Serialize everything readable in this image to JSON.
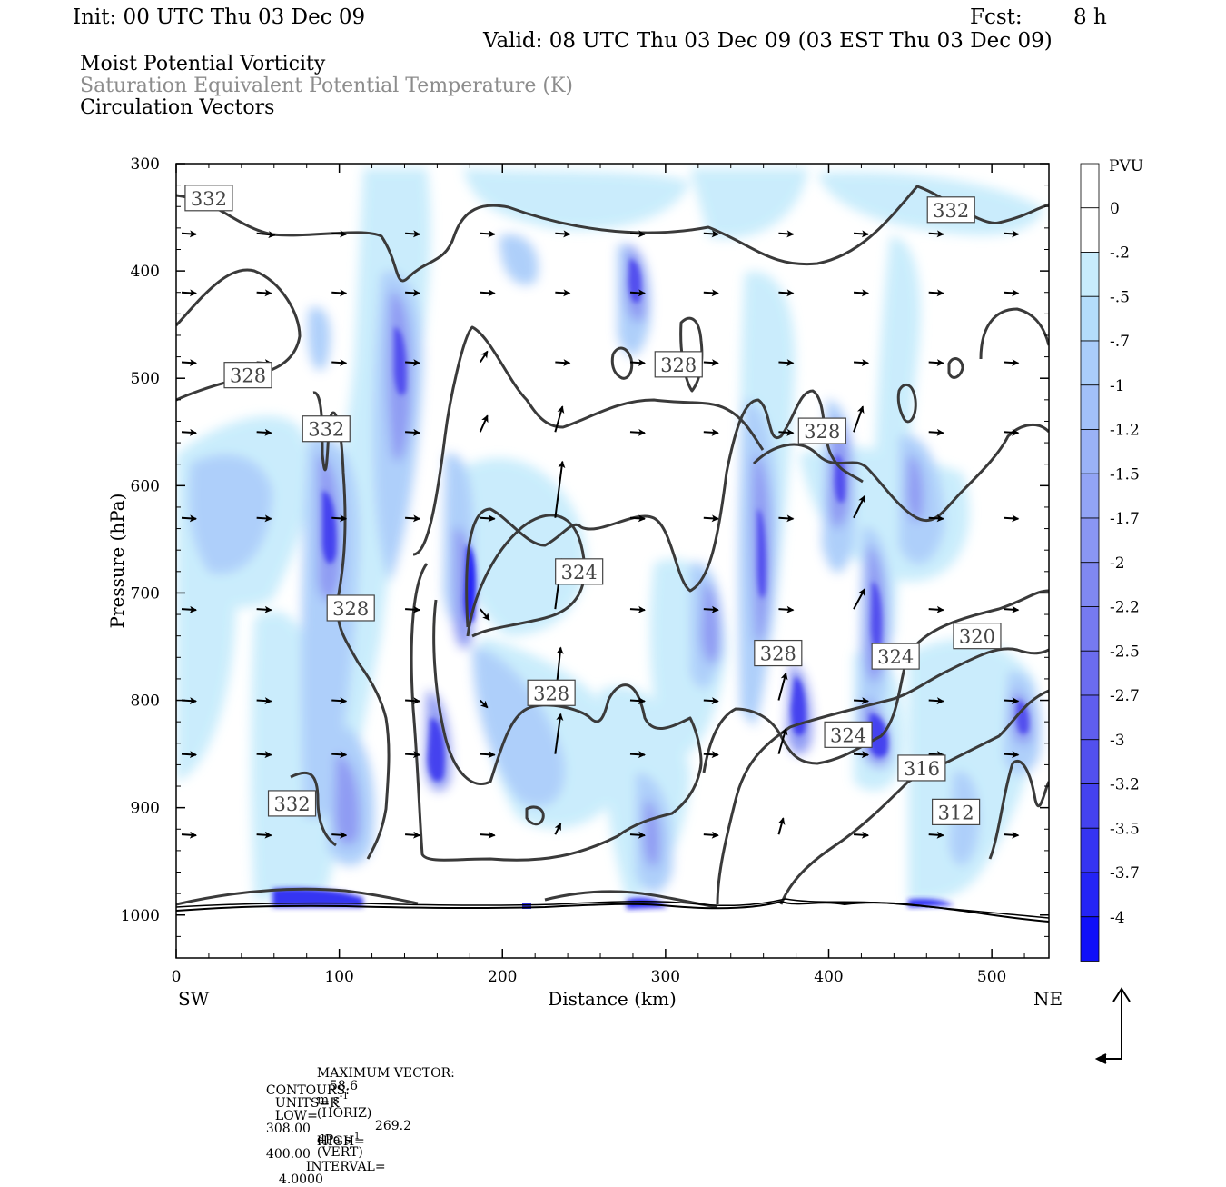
{
  "header": {
    "init": "Init: 00 UTC Thu 03 Dec 09",
    "fcst_label": "Fcst:",
    "fcst_value": "8 h",
    "valid": "Valid: 08 UTC Thu 03 Dec 09 (03 EST Thu 03 Dec 09)",
    "field1": "Moist Potential Vorticity",
    "field2": "Saturation Equivalent Potential Temperature (K)",
    "field3": "Circulation Vectors"
  },
  "chart_data": {
    "type": "cross-section",
    "xlabel": "Distance (km)",
    "ylabel": "Pressure (hPa)",
    "xlim": [
      0,
      535
    ],
    "ylim": [
      300,
      1040
    ],
    "x_ticks": [
      0,
      100,
      200,
      300,
      400,
      500
    ],
    "x_tick_labels": [
      "0",
      "100",
      "200",
      "300",
      "400",
      "500"
    ],
    "y_ticks": [
      300,
      400,
      500,
      600,
      700,
      800,
      900,
      1000
    ],
    "y_tick_labels": [
      "300",
      "400",
      "500",
      "600",
      "700",
      "800",
      "900",
      "1000"
    ],
    "left_end": "SW",
    "right_end": "NE",
    "colorbar": {
      "unit": "PVU",
      "levels": [
        "0",
        "-.2",
        "-.5",
        "-.7",
        "-1",
        "-1.2",
        "-1.5",
        "-1.7",
        "-2",
        "-2.2",
        "-2.5",
        "-2.7",
        "-3",
        "-3.2",
        "-3.5",
        "-3.7",
        "-4"
      ],
      "colors": [
        "#ffffff",
        "#ffffff",
        "#c8ecfc",
        "#b4ddfb",
        "#aacdfa",
        "#a2c0f8",
        "#9ab2f7",
        "#92a4f5",
        "#8a96f3",
        "#8088f1",
        "#767af0",
        "#6b6cef",
        "#5f5eee",
        "#5250ee",
        "#4442ef",
        "#3534f2",
        "#2424f5",
        "#0f0ff9"
      ]
    },
    "contour_labels": [
      {
        "text": "332",
        "x": 20,
        "p": 332
      },
      {
        "text": "332",
        "x": 475,
        "p": 343
      },
      {
        "text": "328",
        "x": 44,
        "p": 497
      },
      {
        "text": "332",
        "x": 92,
        "p": 547
      },
      {
        "text": "328",
        "x": 308,
        "p": 487
      },
      {
        "text": "328",
        "x": 396,
        "p": 549
      },
      {
        "text": "324",
        "x": 247,
        "p": 680
      },
      {
        "text": "328",
        "x": 107,
        "p": 714
      },
      {
        "text": "328",
        "x": 230,
        "p": 793
      },
      {
        "text": "328",
        "x": 369,
        "p": 756
      },
      {
        "text": "324",
        "x": 441,
        "p": 759
      },
      {
        "text": "320",
        "x": 491,
        "p": 740
      },
      {
        "text": "324",
        "x": 412,
        "p": 832
      },
      {
        "text": "316",
        "x": 457,
        "p": 863
      },
      {
        "text": "332",
        "x": 71,
        "p": 896
      },
      {
        "text": "312",
        "x": 478,
        "p": 904
      }
    ],
    "contours": {
      "units": "K",
      "low": 308.0,
      "high": 400.0,
      "interval": 4.0
    },
    "max_vector": {
      "horiz": 58.6,
      "horiz_unit": "m s-1",
      "vert": 269.2,
      "vert_unit": "dPa s-1"
    }
  },
  "footer": {
    "max_vector_label": "MAXIMUM VECTOR:",
    "horiz_value": "58.6",
    "horiz_unit": "m s",
    "horiz_exp": "-1",
    "horiz_tag": "(HORIZ)",
    "vert_value": "269.2",
    "vert_unit": "dPa s",
    "vert_exp": "-1",
    "vert_tag": "(VERT)",
    "contours_label": "CONTOURS:",
    "units_text": "UNITS=K",
    "low_text": "LOW=",
    "low_value": "308.00",
    "high_text": "HIGH=",
    "high_value": "400.00",
    "interval_text": "INTERVAL=",
    "interval_value": "4.0000"
  }
}
